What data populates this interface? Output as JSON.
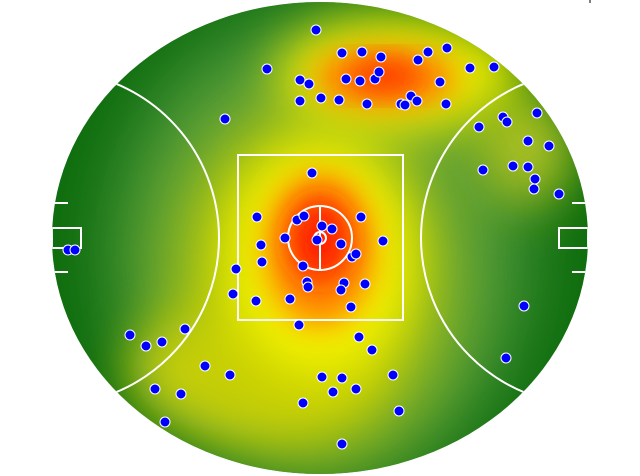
{
  "chart_data": {
    "type": "scatter",
    "title": "",
    "xlabel": "",
    "ylabel": "",
    "background": "heatmap",
    "field": "AFL oval",
    "grid": false,
    "legend": "none",
    "colors": {
      "point_fill": "#0000ff",
      "point_stroke": "#ffffff",
      "heat_low": "#0b6b0b",
      "heat_mid": "#f0f000",
      "heat_high": "#ff1a00",
      "field_lines": "#ffffff"
    },
    "points": [
      [
        -1.2,
        62.4
      ],
      [
        6.6,
        55.5
      ],
      [
        12.6,
        55.8
      ],
      [
        18.3,
        54.3
      ],
      [
        32.4,
        55.8
      ],
      [
        38.1,
        57.0
      ],
      [
        29.4,
        53.4
      ],
      [
        -15.9,
        50.7
      ],
      [
        -6.0,
        47.4
      ],
      [
        -3.3,
        46.2
      ],
      [
        7.8,
        47.7
      ],
      [
        12.0,
        47.1
      ],
      [
        16.5,
        47.7
      ],
      [
        17.7,
        49.8
      ],
      [
        36.0,
        46.8
      ],
      [
        45.0,
        51.0
      ],
      [
        52.2,
        51.3
      ],
      [
        -6.0,
        41.1
      ],
      [
        0.3,
        42.0
      ],
      [
        5.7,
        41.4
      ],
      [
        14.1,
        40.2
      ],
      [
        24.3,
        40.2
      ],
      [
        25.5,
        39.9
      ],
      [
        27.3,
        42.6
      ],
      [
        29.1,
        41.1
      ],
      [
        37.8,
        40.2
      ],
      [
        -28.5,
        35.7
      ],
      [
        47.7,
        33.3
      ],
      [
        54.9,
        36.3
      ],
      [
        56.1,
        34.8
      ],
      [
        65.1,
        37.5
      ],
      [
        62.4,
        29.1
      ],
      [
        68.7,
        27.6
      ],
      [
        48.9,
        20.4
      ],
      [
        57.9,
        21.6
      ],
      [
        62.4,
        21.3
      ],
      [
        64.5,
        17.7
      ],
      [
        64.2,
        14.7
      ],
      [
        71.7,
        13.2
      ],
      [
        -2.4,
        19.5
      ],
      [
        -18.9,
        6.3
      ],
      [
        -6.9,
        5.4
      ],
      [
        -4.8,
        6.6
      ],
      [
        12.3,
        6.3
      ],
      [
        0.6,
        3.6
      ],
      [
        3.6,
        2.7
      ],
      [
        -0.9,
        -0.6
      ],
      [
        -10.5,
        0.0
      ],
      [
        6.3,
        -1.8
      ],
      [
        18.9,
        -0.9
      ],
      [
        -17.7,
        -2.1
      ],
      [
        -17.4,
        -7.2
      ],
      [
        9.6,
        -5.7
      ],
      [
        10.8,
        -4.8
      ],
      [
        -5.1,
        -8.4
      ],
      [
        -25.2,
        -9.3
      ],
      [
        -3.9,
        -13.2
      ],
      [
        -3.6,
        -14.7
      ],
      [
        7.2,
        -13.5
      ],
      [
        6.3,
        -15.6
      ],
      [
        13.5,
        -13.8
      ],
      [
        -26.1,
        -16.8
      ],
      [
        -9.0,
        -18.3
      ],
      [
        -19.2,
        -18.9
      ],
      [
        9.3,
        -20.7
      ],
      [
        -6.3,
        -26.1
      ],
      [
        -75.6,
        -3.6
      ],
      [
        -73.5,
        -3.6
      ],
      [
        -57.0,
        -29.1
      ],
      [
        -52.2,
        -32.4
      ],
      [
        -47.4,
        -31.2
      ],
      [
        -40.5,
        -27.3
      ],
      [
        -34.5,
        -38.4
      ],
      [
        -27.0,
        -41.1
      ],
      [
        11.7,
        -29.7
      ],
      [
        15.6,
        -33.6
      ],
      [
        0.6,
        -41.7
      ],
      [
        6.6,
        -42.0
      ],
      [
        21.9,
        -41.1
      ],
      [
        -49.5,
        -45.3
      ],
      [
        -41.7,
        -46.8
      ],
      [
        3.9,
        -46.2
      ],
      [
        10.8,
        -45.3
      ],
      [
        -5.1,
        -49.5
      ],
      [
        23.7,
        -51.9
      ],
      [
        -46.5,
        -55.2
      ],
      [
        6.6,
        -61.8
      ],
      [
        61.2,
        -20.4
      ],
      [
        55.8,
        -36.0
      ]
    ]
  }
}
